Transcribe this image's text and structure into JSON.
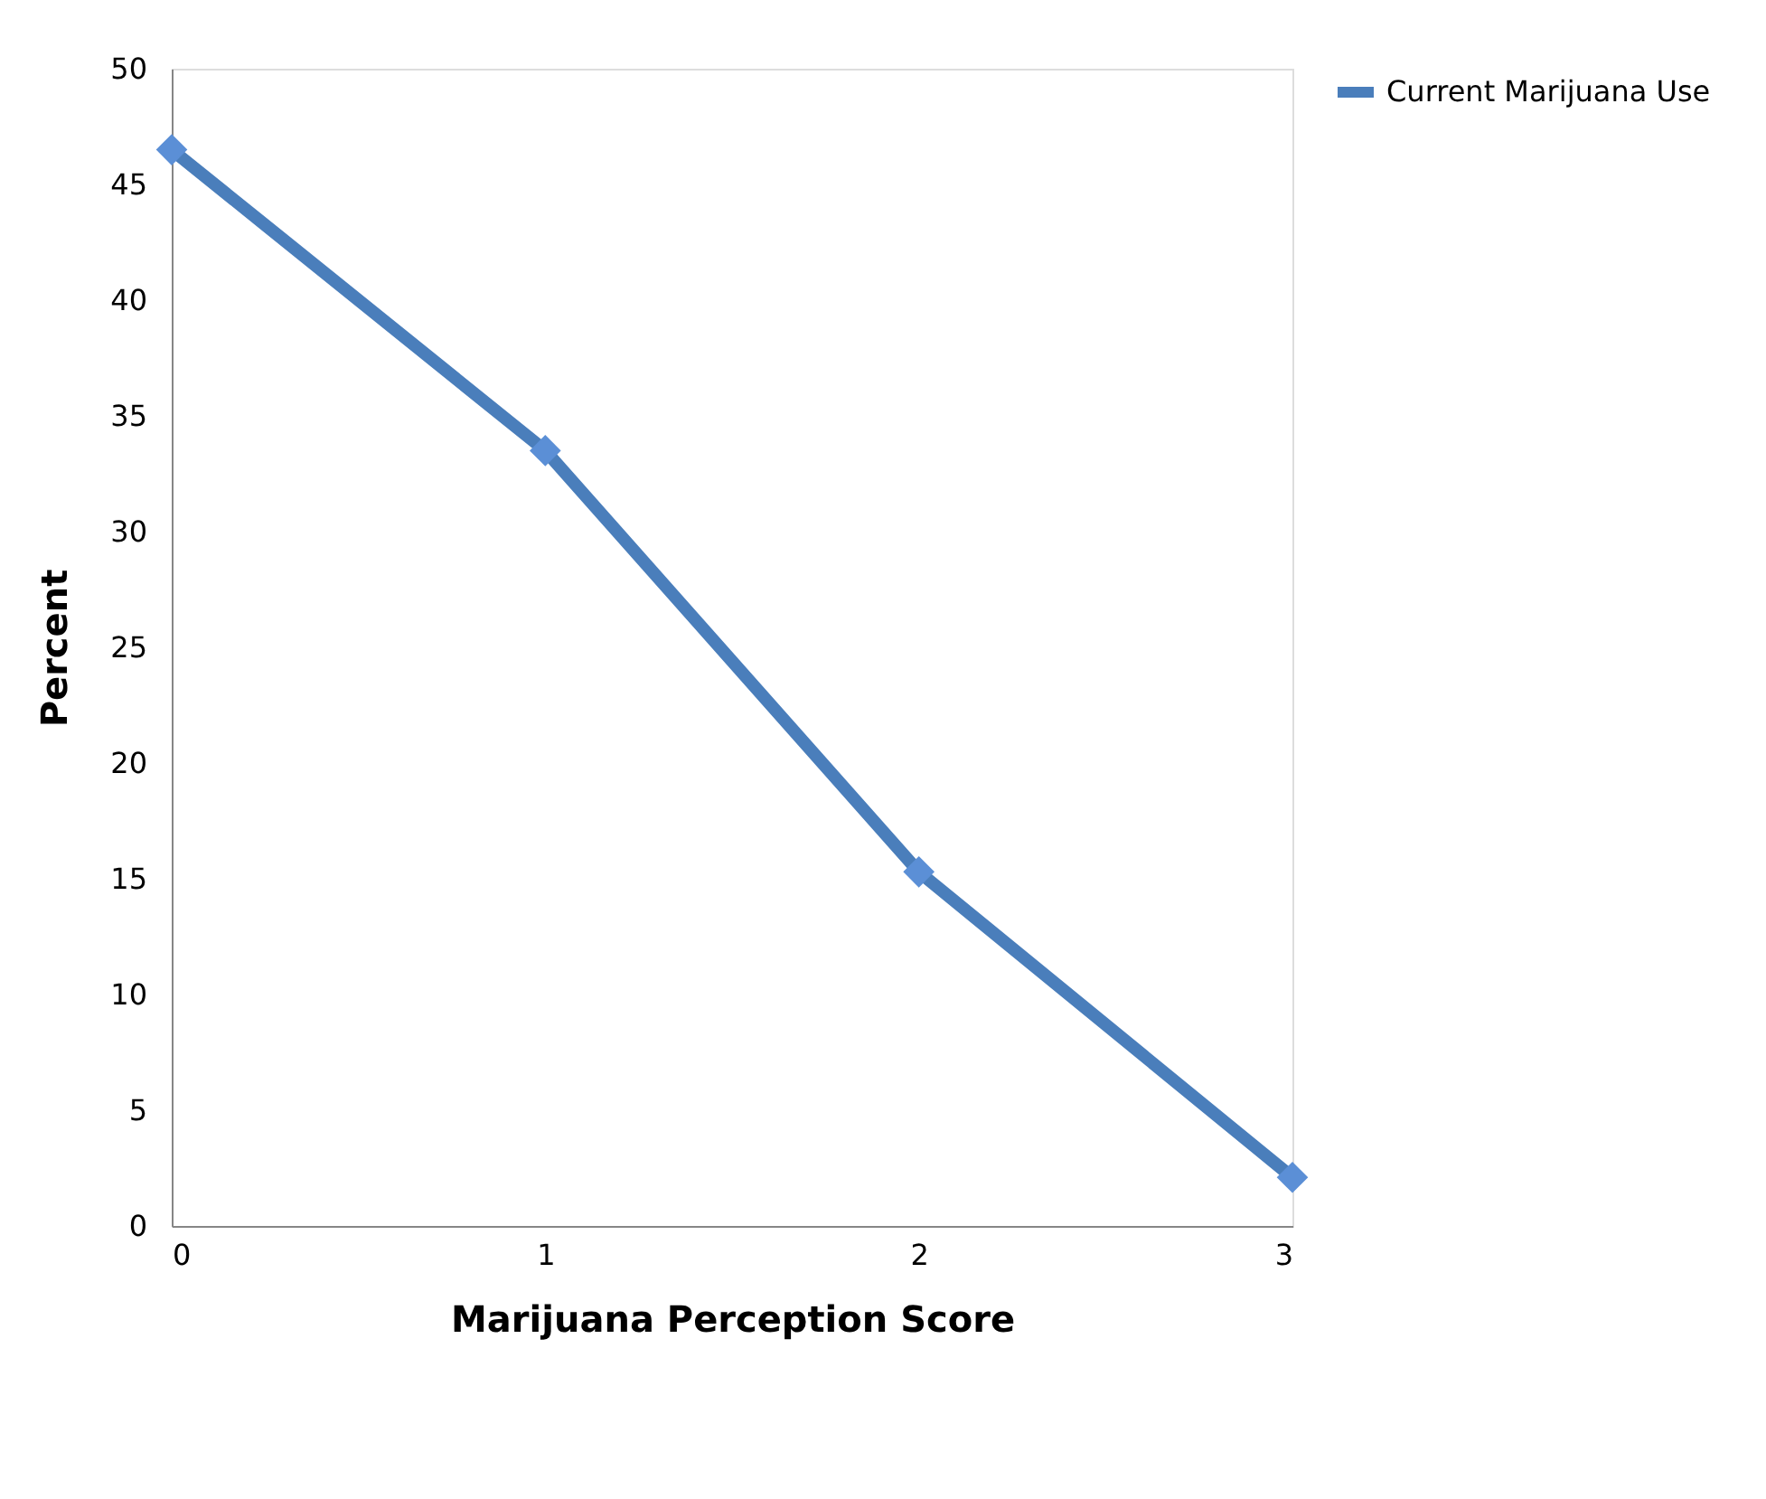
{
  "chart_data": {
    "type": "line",
    "xlabel": "Marijuana Perception Score",
    "ylabel": "Percent",
    "x": [
      0,
      1,
      2,
      3
    ],
    "series": [
      {
        "name": "Current Marijuana Use",
        "color": "#4a7ebb",
        "values": [
          46.5,
          33.5,
          15.3,
          2.1
        ]
      }
    ],
    "xlim": [
      0,
      3
    ],
    "xticks": [
      0,
      1,
      2,
      3
    ],
    "ylim": [
      0,
      50
    ],
    "yticks": [
      0,
      5,
      10,
      15,
      20,
      25,
      30,
      35,
      40,
      45,
      50
    ],
    "grid": false,
    "legend": "right",
    "marker": "diamond",
    "line_style": "solid"
  }
}
